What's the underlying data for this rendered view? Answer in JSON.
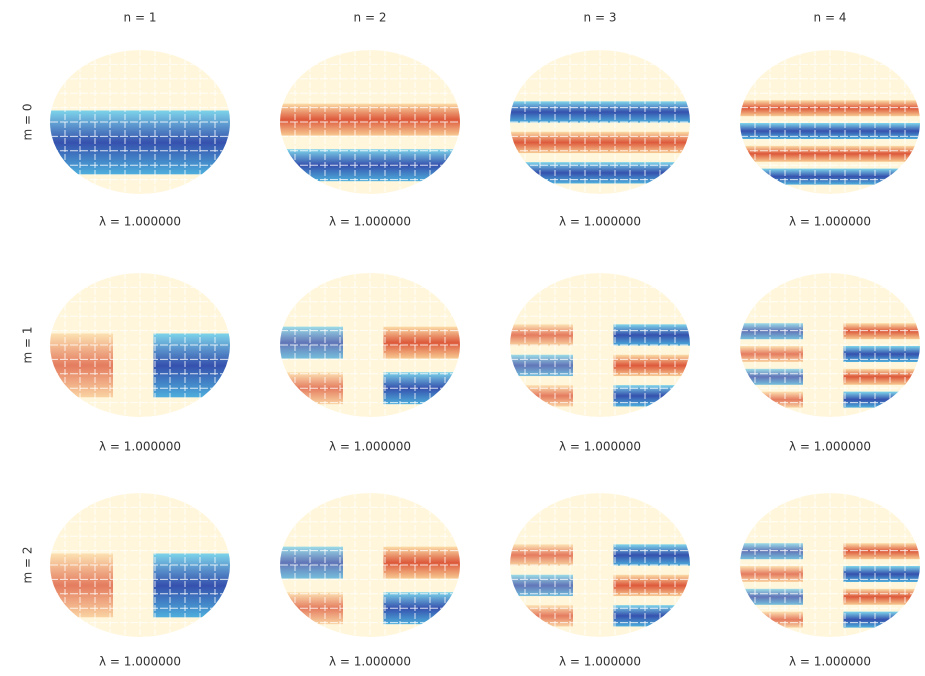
{
  "columns": [
    "n = 1",
    "n = 2",
    "n = 3",
    "n = 4"
  ],
  "rows": [
    "m = 0",
    "m = 1",
    "m = 2"
  ],
  "cells": [
    [
      "λ = 1.000000",
      "λ = 1.000000",
      "λ = 1.000000",
      "λ = 1.000000"
    ],
    [
      "λ = 1.000000",
      "λ = 1.000000",
      "λ = 1.000000",
      "λ = 1.000000"
    ],
    [
      "λ = 1.000000",
      "λ = 1.000000",
      "λ = 1.000000",
      "λ = 1.000000"
    ]
  ]
}
